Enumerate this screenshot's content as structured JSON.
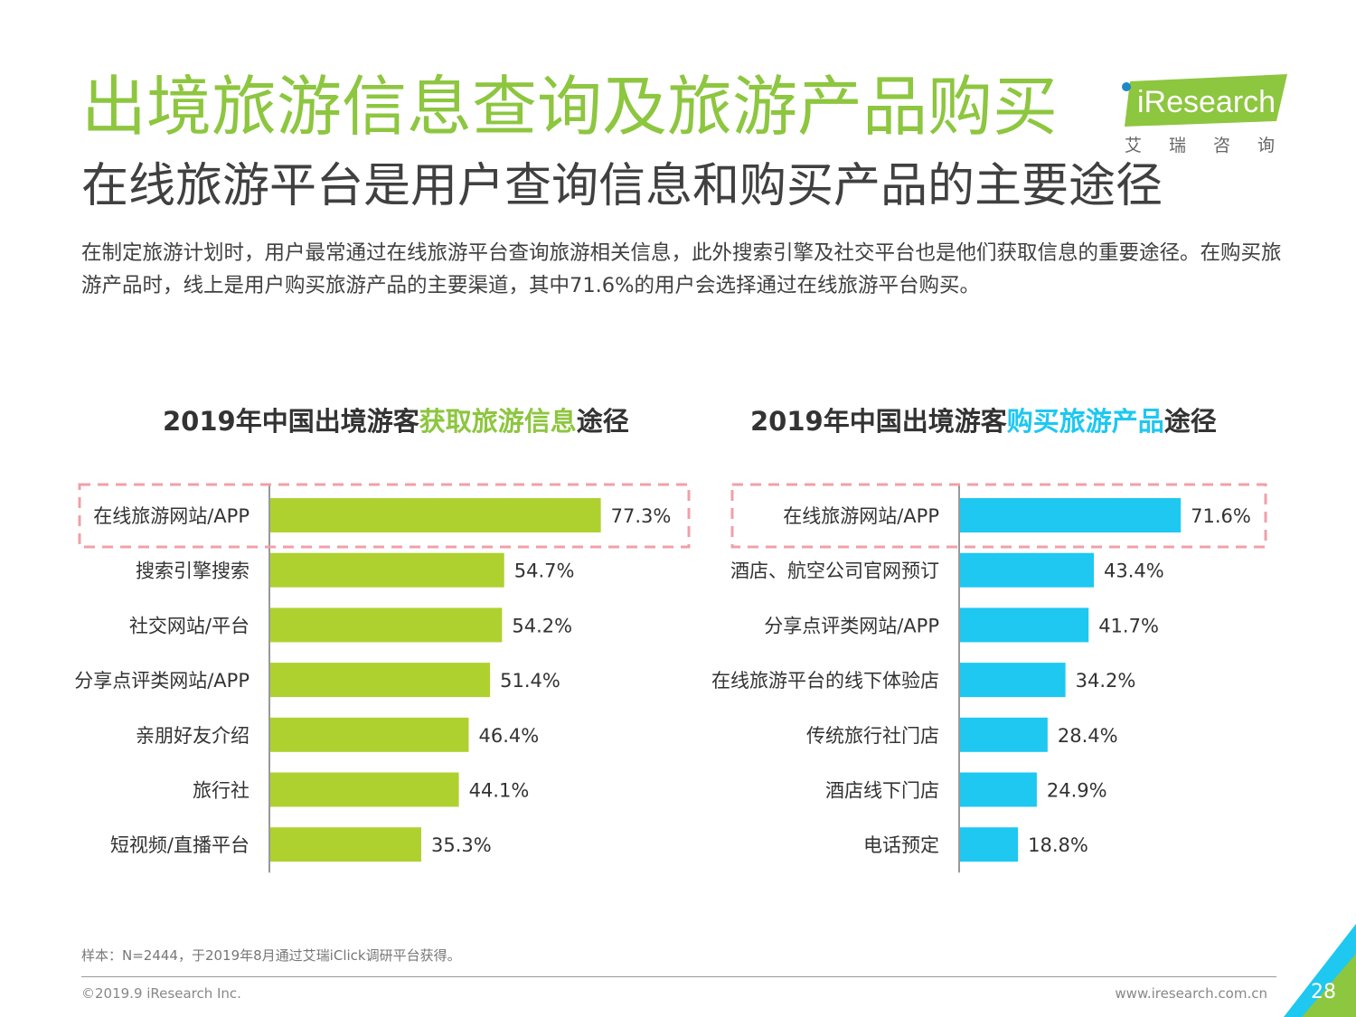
{
  "header": {
    "title": "出境旅游信息查询及旅游产品购买",
    "subtitle": "在线旅游平台是用户查询信息和购买产品的主要途径",
    "description": "在制定旅游计划时，用户最常通过在线旅游平台查询旅游相关信息，此外搜索引擎及社交平台也是他们获取信息的重要途径。在购买旅游产品时，线上是用户购买旅游产品的主要渠道，其中71.6%的用户会选择通过在线旅游平台购买。"
  },
  "logo": {
    "brand": "iResearch",
    "sub": "艾瑞咨询"
  },
  "colors": {
    "green": "#afd130",
    "blue": "#1ec8f0",
    "dashed": "#f0a0a8",
    "title_green": "#8dc63f"
  },
  "chart_data": [
    {
      "type": "bar",
      "orientation": "horizontal",
      "title_parts": [
        "2019年中国出境游客",
        "获取旅游信息",
        "途径"
      ],
      "categories": [
        "在线旅游网站/APP",
        "搜索引擎搜索",
        "社交网站/平台",
        "分享点评类网站/APP",
        "亲朋好友介绍",
        "旅行社",
        "短视频/直播平台"
      ],
      "values": [
        77.3,
        54.7,
        54.2,
        51.4,
        46.4,
        44.1,
        35.3
      ],
      "value_labels": [
        "77.3%",
        "54.7%",
        "54.2%",
        "51.4%",
        "46.4%",
        "44.1%",
        "35.3%"
      ],
      "unit": "%",
      "highlight_index": 0
    },
    {
      "type": "bar",
      "orientation": "horizontal",
      "title_parts": [
        "2019年中国出境游客",
        "购买旅游产品",
        "途径"
      ],
      "categories": [
        "在线旅游网站/APP",
        "酒店、航空公司官网预订",
        "分享点评类网站/APP",
        "在线旅游平台的线下体验店",
        "传统旅行社门店",
        "酒店线下门店",
        "电话预定"
      ],
      "values": [
        71.6,
        43.4,
        41.7,
        34.2,
        28.4,
        24.9,
        18.8
      ],
      "value_labels": [
        "71.6%",
        "43.4%",
        "41.7%",
        "34.2%",
        "28.4%",
        "24.9%",
        "18.8%"
      ],
      "unit": "%",
      "highlight_index": 0
    }
  ],
  "footer": {
    "note": "样本：N=2444，于2019年8月通过艾瑞iClick调研平台获得。",
    "copyright": "©2019.9 iResearch Inc.",
    "website": "www.iresearch.com.cn",
    "page": "28"
  }
}
